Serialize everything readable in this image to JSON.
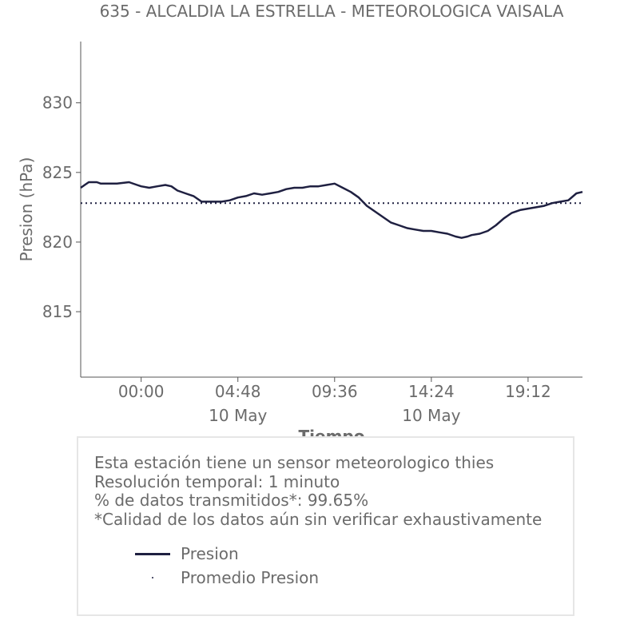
{
  "chart_data": {
    "type": "line",
    "title": "635 - ALCALDIA LA ESTRELLA - METEOROLOGICA VAISALA",
    "xlabel": "Tiempo",
    "ylabel": "Presion (hPa)",
    "ylim": [
      810.3,
      834.4
    ],
    "xlim": [
      -3.0,
      21.9
    ],
    "ytick_labels": [
      "815",
      "820",
      "825",
      "830"
    ],
    "ytick_values": [
      815,
      820,
      825,
      830
    ],
    "xtick_labels": [
      "00:00",
      "04:48",
      "09:36",
      "14:24",
      "19:12"
    ],
    "xtick_values": [
      0,
      4.8,
      9.6,
      14.4,
      19.2
    ],
    "xtick_sublabels": [
      "",
      "10 May",
      "",
      "10 May",
      ""
    ],
    "grid": false,
    "series": [
      {
        "name": "Presion",
        "color": "#1f2041",
        "x": [
          -3.0,
          -2.8,
          -2.6,
          -2.2,
          -2.0,
          -1.6,
          -1.2,
          -0.6,
          -0.2,
          0.0,
          0.4,
          0.8,
          1.2,
          1.5,
          1.8,
          2.2,
          2.6,
          3.0,
          3.4,
          3.6,
          4.0,
          4.4,
          4.8,
          5.2,
          5.6,
          6.0,
          6.4,
          6.8,
          7.2,
          7.6,
          8.0,
          8.4,
          8.8,
          9.2,
          9.6,
          10.0,
          10.4,
          10.8,
          11.2,
          11.6,
          12.0,
          12.4,
          12.8,
          13.2,
          13.6,
          14.0,
          14.4,
          14.8,
          15.2,
          15.6,
          15.9,
          16.2,
          16.4,
          16.8,
          17.2,
          17.6,
          18.0,
          18.4,
          18.8,
          19.2,
          19.6,
          20.0,
          20.4,
          20.8,
          21.2,
          21.6,
          21.9
        ],
        "values": [
          823.9,
          824.1,
          824.3,
          824.3,
          824.2,
          824.2,
          824.2,
          824.3,
          824.1,
          824.0,
          823.9,
          824.0,
          824.1,
          824.0,
          823.7,
          823.5,
          823.3,
          822.9,
          822.9,
          822.9,
          822.9,
          823.0,
          823.2,
          823.3,
          823.5,
          823.4,
          823.5,
          823.6,
          823.8,
          823.9,
          823.9,
          824.0,
          824.0,
          824.1,
          824.2,
          823.9,
          823.6,
          823.2,
          822.6,
          822.2,
          821.8,
          821.4,
          821.2,
          821.0,
          820.9,
          820.8,
          820.8,
          820.7,
          820.6,
          820.4,
          820.3,
          820.4,
          820.5,
          820.6,
          820.8,
          821.2,
          821.7,
          822.1,
          822.3,
          822.4,
          822.5,
          822.6,
          822.8,
          822.9,
          823.0,
          823.5,
          823.6
        ]
      },
      {
        "name": "Promedio Presion",
        "color": "#1f2041",
        "style": "dotted",
        "x": [
          -3.0,
          21.9
        ],
        "values": [
          822.8,
          822.8
        ]
      }
    ],
    "legend_position": "bottom"
  },
  "info": {
    "line1": "Esta estación tiene un sensor meteorologico thies",
    "line2": "Resolución temporal: 1 minuto",
    "line3": "% de datos transmitidos*: 99.65%",
    "line4": "*Calidad de los datos aún sin verificar exhaustivamente"
  },
  "legend": {
    "item1": "Presion",
    "item2": "Promedio Presion"
  }
}
